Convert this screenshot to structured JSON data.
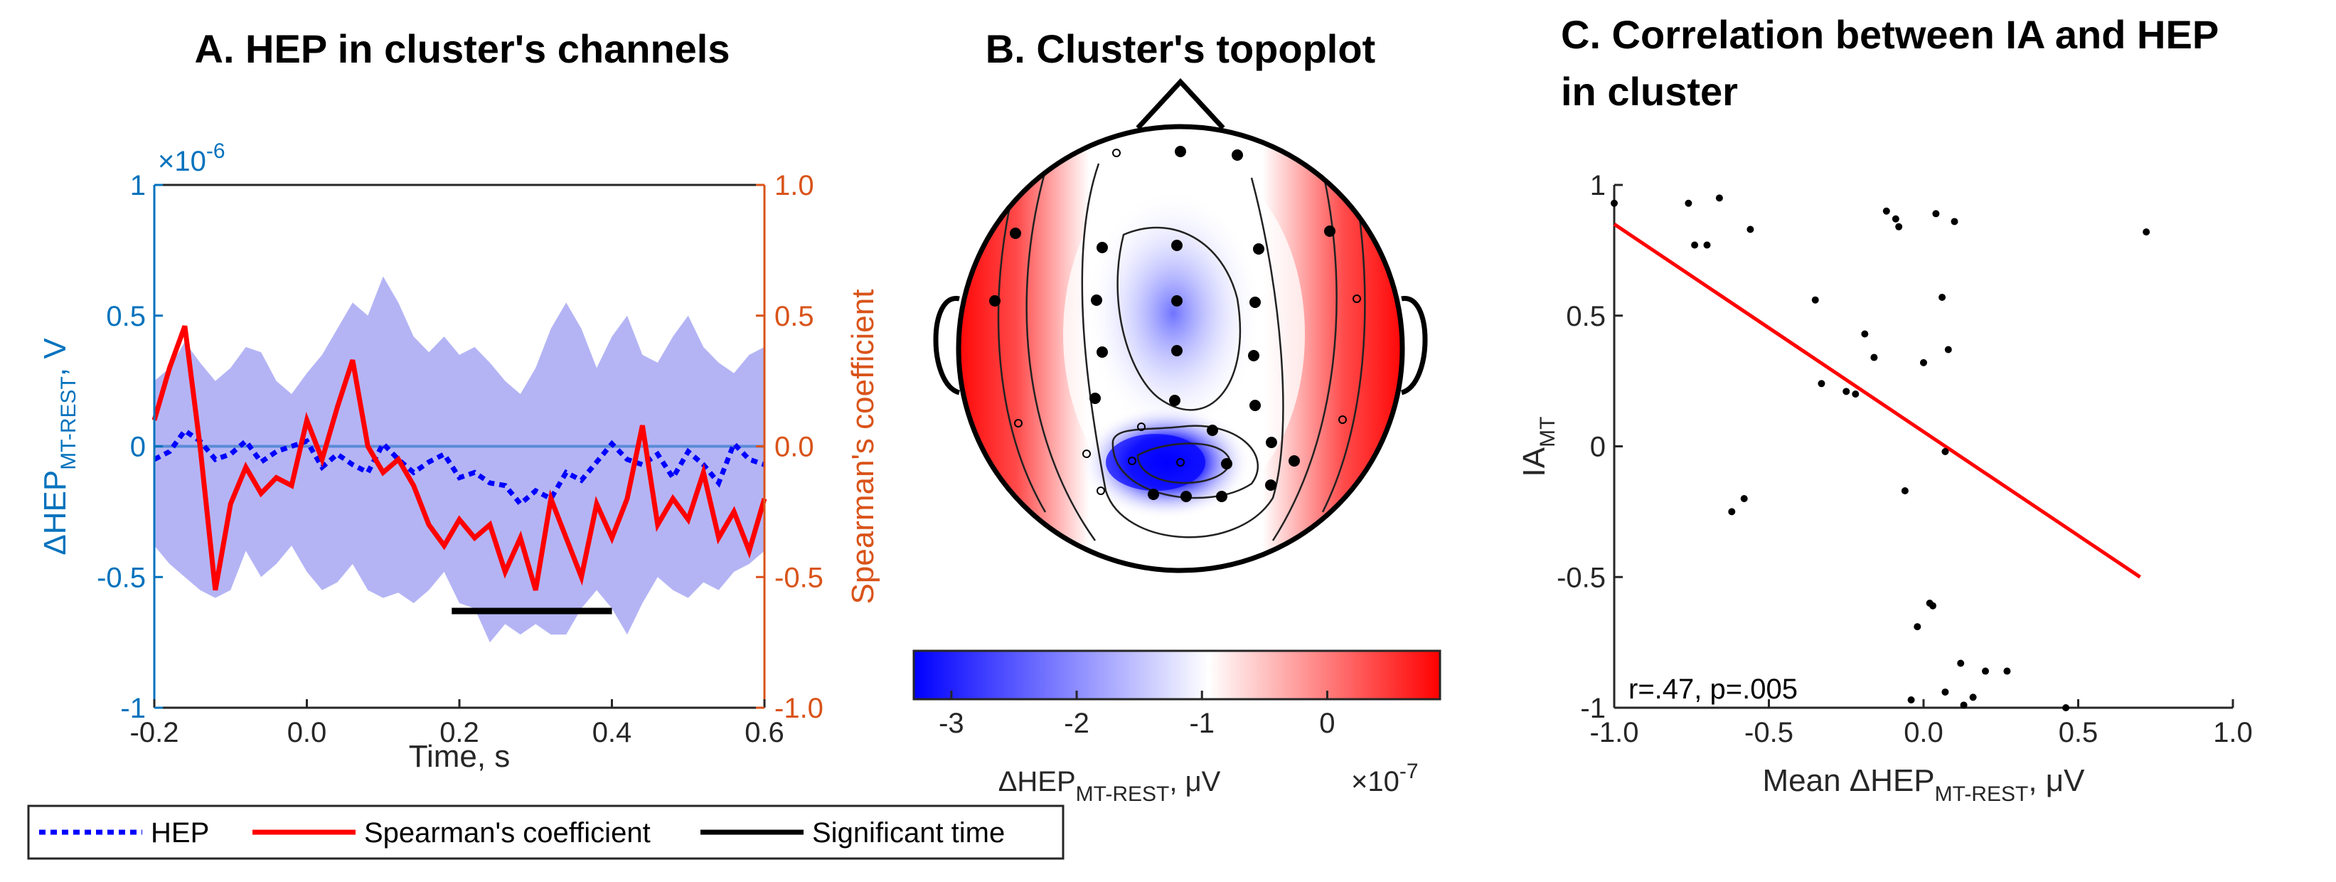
{
  "chart_data": [
    {
      "type": "line",
      "title": "A. HEP in cluster's channels",
      "xlabel": "Time, s",
      "ylabel_left": "ΔHEP",
      "ylabel_left_sub": "MT-REST",
      "ylabel_left_unit": ", V",
      "ylabel_right": "Spearman's coefficient",
      "y_left_exponent_base": "×10",
      "y_left_exponent": "-6",
      "xlim": [
        -0.2,
        0.6
      ],
      "ylim_left": [
        -1,
        1
      ],
      "ylim_right": [
        -1.0,
        1.0
      ],
      "x_ticks": [
        "-0.2",
        "0.0",
        "0.2",
        "0.4",
        "0.6"
      ],
      "y_left_ticks": [
        "1",
        "0.5",
        "0",
        "-0.5",
        "-1"
      ],
      "y_right_ticks": [
        "1.0",
        "0.5",
        "0.0",
        "-0.5",
        "-1.0"
      ],
      "legend": [
        "HEP",
        "Spearman's coefficient",
        "Significant time"
      ],
      "x": [
        -0.2,
        -0.18,
        -0.16,
        -0.14,
        -0.12,
        -0.1,
        -0.08,
        -0.06,
        -0.04,
        -0.02,
        0.0,
        0.02,
        0.04,
        0.06,
        0.08,
        0.1,
        0.12,
        0.14,
        0.16,
        0.18,
        0.2,
        0.22,
        0.24,
        0.26,
        0.28,
        0.3,
        0.32,
        0.34,
        0.36,
        0.38,
        0.4,
        0.42,
        0.44,
        0.46,
        0.48,
        0.5,
        0.52,
        0.54,
        0.56,
        0.58,
        0.6
      ],
      "series": [
        {
          "name": "HEP",
          "axis": "left",
          "values": [
            -0.05,
            -0.02,
            0.06,
            0.02,
            -0.05,
            -0.03,
            0.02,
            -0.06,
            -0.02,
            0.0,
            0.02,
            -0.08,
            -0.03,
            -0.07,
            -0.1,
            0.01,
            -0.05,
            -0.1,
            -0.06,
            -0.03,
            -0.12,
            -0.1,
            -0.14,
            -0.15,
            -0.22,
            -0.17,
            -0.2,
            -0.1,
            -0.13,
            -0.06,
            0.01,
            -0.05,
            -0.07,
            -0.03,
            -0.12,
            -0.02,
            -0.07,
            -0.14,
            0.01,
            -0.05,
            -0.07
          ]
        },
        {
          "name": "Spearman's coefficient",
          "axis": "right",
          "values": [
            0.1,
            0.3,
            0.46,
            0.0,
            -0.55,
            -0.22,
            -0.08,
            -0.18,
            -0.12,
            -0.15,
            0.1,
            -0.05,
            0.15,
            0.33,
            0.0,
            -0.1,
            -0.05,
            -0.15,
            -0.3,
            -0.38,
            -0.28,
            -0.35,
            -0.3,
            -0.48,
            -0.35,
            -0.55,
            -0.2,
            -0.35,
            -0.5,
            -0.22,
            -0.35,
            -0.2,
            0.08,
            -0.3,
            -0.2,
            -0.28,
            -0.1,
            -0.35,
            -0.25,
            -0.4,
            -0.2
          ]
        },
        {
          "name": "HEP band upper",
          "axis": "left",
          "values": [
            0.25,
            0.3,
            0.4,
            0.32,
            0.25,
            0.3,
            0.38,
            0.36,
            0.25,
            0.2,
            0.28,
            0.35,
            0.45,
            0.55,
            0.5,
            0.65,
            0.55,
            0.42,
            0.36,
            0.42,
            0.35,
            0.38,
            0.32,
            0.25,
            0.2,
            0.3,
            0.45,
            0.55,
            0.45,
            0.3,
            0.42,
            0.5,
            0.35,
            0.32,
            0.42,
            0.5,
            0.38,
            0.32,
            0.28,
            0.35,
            0.38
          ]
        },
        {
          "name": "HEP band lower",
          "axis": "left",
          "values": [
            -0.38,
            -0.45,
            -0.5,
            -0.55,
            -0.58,
            -0.55,
            -0.4,
            -0.5,
            -0.45,
            -0.38,
            -0.48,
            -0.55,
            -0.52,
            -0.45,
            -0.55,
            -0.58,
            -0.56,
            -0.6,
            -0.55,
            -0.48,
            -0.6,
            -0.62,
            -0.75,
            -0.68,
            -0.72,
            -0.68,
            -0.72,
            -0.72,
            -0.62,
            -0.55,
            -0.62,
            -0.72,
            -0.6,
            -0.5,
            -0.55,
            -0.58,
            -0.52,
            -0.55,
            -0.48,
            -0.45,
            -0.4
          ]
        }
      ],
      "significant_interval": [
        0.19,
        0.4
      ],
      "significant_level_right": -0.63
    },
    {
      "type": "heatmap",
      "title": "B. Cluster's topoplot",
      "colorbar_label": "ΔHEP",
      "colorbar_label_sub": "MT-REST",
      "colorbar_label_unit": ", μV",
      "colorbar_exponent_base": "×10",
      "colorbar_exponent": "-7",
      "colorbar_range": [
        -3.3,
        0.9
      ],
      "colorbar_ticks": [
        "-3",
        "-2",
        "-1",
        "0"
      ],
      "colormap": [
        "#0000ff",
        "#ffffff",
        "#ff0000"
      ],
      "cluster_channels": 20,
      "other_channels": 12
    },
    {
      "type": "scatter",
      "title": "C. Correlation between IA and HEP",
      "title_line2": "in cluster",
      "xlabel": "Mean ΔHEP",
      "xlabel_sub": "MT-REST",
      "xlabel_unit": ", μV",
      "ylabel": "IA",
      "ylabel_sub": "MT",
      "xlim": [
        -1.0,
        1.0
      ],
      "ylim": [
        -1,
        1
      ],
      "x_ticks": [
        "-1.0",
        "-0.5",
        "0.0",
        "0.5",
        "1.0"
      ],
      "y_ticks": [
        "1",
        "0.5",
        "0",
        "-0.5",
        "-1"
      ],
      "annotation": "r=.47, p=.005",
      "x": [
        -1.0,
        -0.76,
        -0.74,
        -0.7,
        -0.66,
        -0.56,
        -0.35,
        -0.33,
        -0.25,
        -0.22,
        -0.19,
        -0.16,
        -0.12,
        -0.09,
        -0.08,
        -0.06,
        -0.04,
        -0.02,
        0.0,
        0.02,
        0.04,
        0.06,
        0.07,
        0.08,
        0.1,
        0.12,
        0.13,
        0.16,
        0.2,
        0.27,
        0.46,
        0.72,
        -0.62,
        -0.58,
        0.03,
        0.07
      ],
      "y": [
        0.93,
        0.93,
        0.77,
        0.77,
        0.95,
        0.83,
        0.56,
        0.24,
        0.21,
        0.2,
        0.43,
        0.34,
        0.9,
        0.87,
        0.84,
        -0.17,
        -0.97,
        -0.69,
        0.32,
        -0.6,
        0.89,
        0.57,
        -0.02,
        0.37,
        0.86,
        -0.83,
        -0.99,
        -0.96,
        -0.86,
        -0.86,
        -1.0,
        0.82,
        -0.25,
        -0.2,
        -0.61,
        -0.94
      ],
      "fit_line": {
        "x": [
          -1.0,
          0.7
        ],
        "y": [
          0.85,
          -0.5
        ],
        "color": "#ff0000"
      }
    }
  ],
  "colors": {
    "left_axis": "#0072bd",
    "right_axis": "#d95319",
    "hep_line": "#0000ff",
    "spearman_line": "#ff0000",
    "band": "#b4b4f5",
    "zero_line": "#5b8bd6",
    "significant": "#000000"
  }
}
